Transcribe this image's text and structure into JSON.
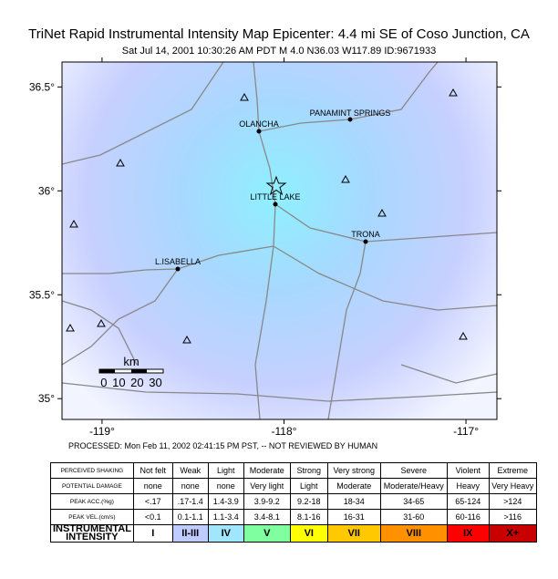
{
  "header": {
    "title": "TriNet Rapid Instrumental Intensity Map Epicenter: 4.4 mi SE of Coso Junction, CA",
    "subtitle": "Sat Jul 14, 2001 10:30:26 AM PDT   M 4.0   N36.03 W117.89   ID:9671933"
  },
  "map": {
    "xlim": [
      -119.22,
      -116.83
    ],
    "ylim": [
      34.9,
      36.62
    ],
    "xticks": [
      {
        "value": -119,
        "label": "-119°"
      },
      {
        "value": -118,
        "label": "-118°"
      },
      {
        "value": -117,
        "label": "-117°"
      }
    ],
    "yticks": [
      {
        "value": 36.5,
        "label": "36.5°"
      },
      {
        "value": 36,
        "label": "36°"
      },
      {
        "value": 35.5,
        "label": "35.5°"
      },
      {
        "value": 35,
        "label": "35°"
      }
    ],
    "places": [
      "OLANCHA",
      "PANAMINT SPRINGS",
      "LITTLE LAKE",
      "TRONA",
      "L.ISABELLA"
    ],
    "scale_unit": "km",
    "scale_labels": "0 10 20 30"
  },
  "footer": {
    "processed": "PROCESSED: Mon Feb 11, 2002 02:41:15 PM PST, -- NOT REVIEWED BY HUMAN"
  },
  "table": {
    "rows": [
      [
        "PERCEIVED SHAKING",
        "Not felt",
        "Weak",
        "Light",
        "Moderate",
        "Strong",
        "Very strong",
        "Severe",
        "Violent",
        "Extreme"
      ],
      [
        "POTENTIAL DAMAGE",
        "none",
        "none",
        "none",
        "Very light",
        "Light",
        "Moderate",
        "Moderate/Heavy",
        "Heavy",
        "Very Heavy"
      ],
      [
        "PEAK ACC.(%g)",
        "<.17",
        ".17-1.4",
        "1.4-3.9",
        "3.9-9.2",
        "9.2-18",
        "18-34",
        "34-65",
        "65-124",
        ">124"
      ],
      [
        "PEAK VEL.(cm/s)",
        "<0.1",
        "0.1-1.1",
        "1.1-3.4",
        "3.4-8.1",
        "8.1-16",
        "16-31",
        "31-60",
        "60-116",
        ">116"
      ],
      [
        "INSTRUMENTAL INTENSITY",
        "I",
        "II-III",
        "IV",
        "V",
        "VI",
        "VII",
        "VIII",
        "IX",
        "X+"
      ]
    ],
    "intensity_colors": [
      "#ffffff",
      "#bfccff",
      "#a0e6ff",
      "#80ffa0",
      "#ffff00",
      "#ffc800",
      "#ff9100",
      "#ff0000",
      "#c80000"
    ]
  }
}
